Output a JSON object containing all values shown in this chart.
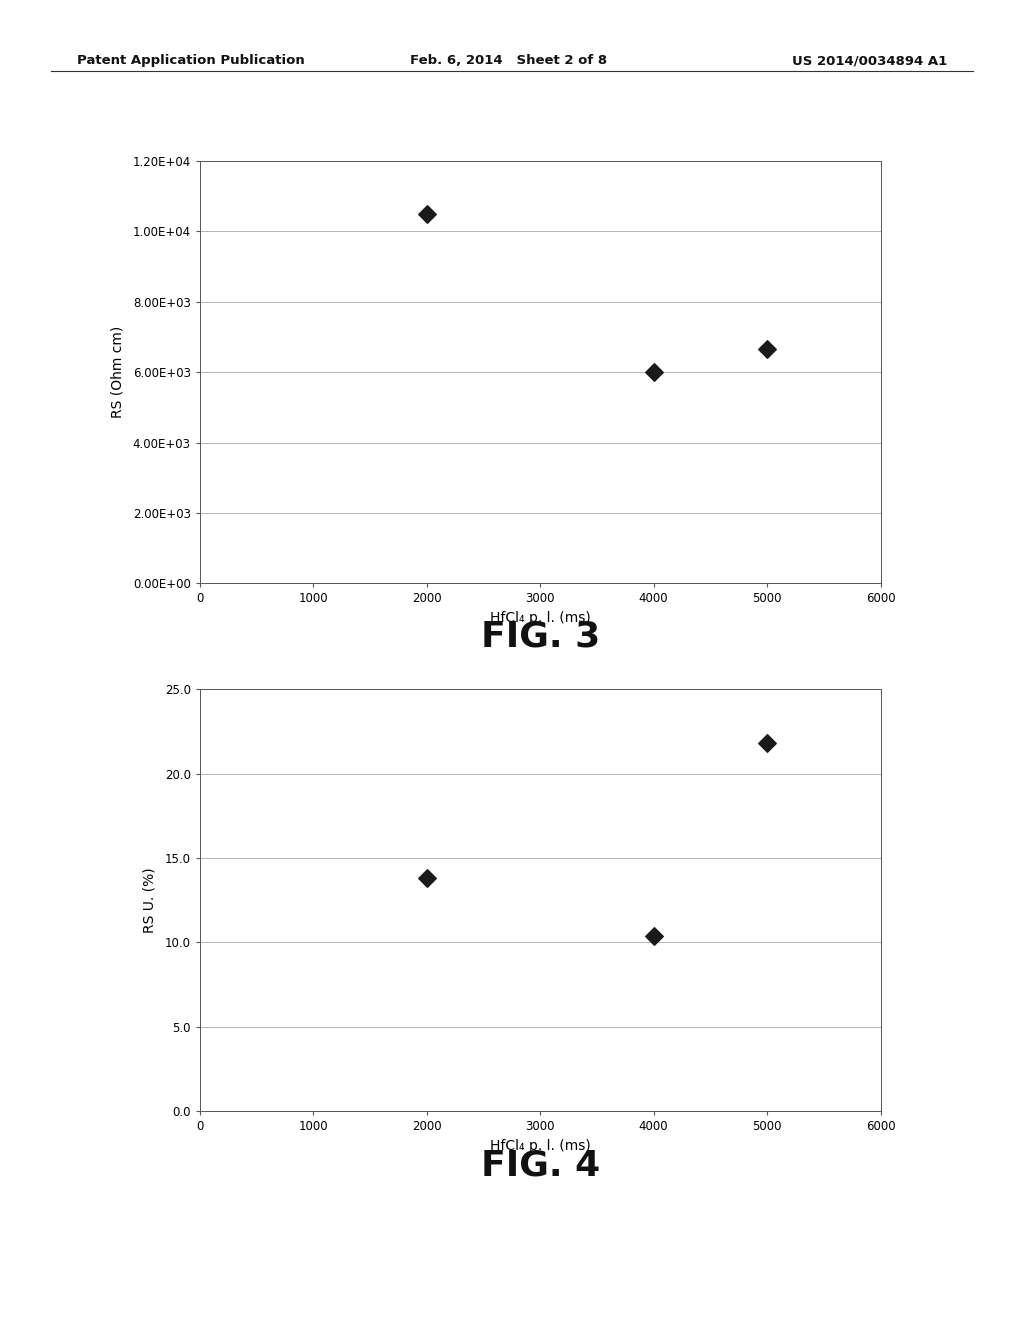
{
  "header_left": "Patent Application Publication",
  "header_center": "Feb. 6, 2014   Sheet 2 of 8",
  "header_right": "US 2014/0034894 A1",
  "fig3": {
    "x": [
      2000,
      4000,
      5000
    ],
    "y": [
      10500,
      6000,
      6650
    ],
    "xlabel": "HfCl₄ p. l. (ms)",
    "ylabel": "RS (Ohm cm)",
    "yticks": [
      0.0,
      2000.0,
      4000.0,
      6000.0,
      8000.0,
      10000.0,
      12000.0
    ],
    "ytick_labels": [
      "0.00E+00",
      "2.00E+03",
      "4.00E+03",
      "6.00E+03",
      "8.00E+03",
      "1.00E+04",
      "1.20E+04"
    ],
    "xticks": [
      0,
      1000,
      2000,
      3000,
      4000,
      5000,
      6000
    ],
    "xlim": [
      0,
      6000
    ],
    "ylim": [
      0,
      12000
    ],
    "caption": "FIG. 3"
  },
  "fig4": {
    "x": [
      2000,
      4000,
      5000
    ],
    "y": [
      13.8,
      10.4,
      21.8
    ],
    "xlabel": "HfCl₄ p. l. (ms)",
    "ylabel": "RS U. (%)",
    "yticks": [
      0.0,
      5.0,
      10.0,
      15.0,
      20.0,
      25.0
    ],
    "ytick_labels": [
      "0.0",
      "5.0",
      "10.0",
      "15.0",
      "20.0",
      "25.0"
    ],
    "xticks": [
      0,
      1000,
      2000,
      3000,
      4000,
      5000,
      6000
    ],
    "xlim": [
      0,
      6000
    ],
    "ylim": [
      0,
      25
    ],
    "caption": "FIG. 4"
  },
  "bg_color": "#ffffff",
  "plot_bg_color": "#ffffff",
  "marker_color": "#1a1a1a",
  "grid_color": "#aaaaaa",
  "spine_color": "#555555",
  "marker_size": 80,
  "font_color": "#111111",
  "header_fontsize": 9.5,
  "tick_fontsize": 8.5,
  "label_fontsize": 10,
  "caption_fontsize": 26
}
